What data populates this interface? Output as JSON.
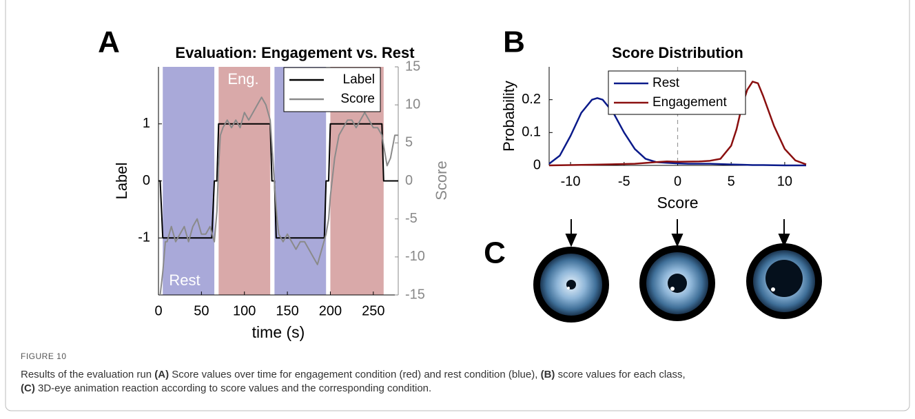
{
  "panels": [
    "A",
    "B",
    "C"
  ],
  "chart_data": [
    {
      "type": "line",
      "title": "Evaluation: Engagement vs. Rest",
      "xlabel": "time (s)",
      "ylabel": "Label",
      "y2label": "Score",
      "xlim": [
        0,
        279
      ],
      "xticks": [
        0,
        50,
        100,
        150,
        200,
        250
      ],
      "ylim": [
        -2,
        2
      ],
      "yticks": [
        -1,
        0,
        1
      ],
      "y2lim": [
        -15,
        15
      ],
      "y2ticks": [
        -15,
        -10,
        -5,
        0,
        5,
        10,
        15
      ],
      "shaded": [
        {
          "start": 5,
          "end": 65,
          "color": "#a9a9d9"
        },
        {
          "start": 70,
          "end": 130,
          "color": "#d9a9a9"
        },
        {
          "start": 135,
          "end": 195,
          "color": "#a9a9d9"
        },
        {
          "start": 200,
          "end": 262,
          "color": "#d9a9a9"
        }
      ],
      "annotations": [
        "Eng.",
        "Rest"
      ],
      "legend": "upper right",
      "series": [
        {
          "name": "Label",
          "color": "#000000",
          "x": [
            0,
            2,
            5,
            62,
            65,
            68,
            70,
            130,
            132,
            135,
            137,
            193,
            195,
            198,
            200,
            260,
            262,
            279
          ],
          "values": [
            0,
            0,
            -1,
            -1,
            0,
            0,
            1,
            1,
            0,
            0,
            -1,
            -1,
            0,
            0,
            1,
            1,
            0,
            0
          ]
        },
        {
          "name": "Score",
          "color": "#8a8a8a",
          "axis": "y2",
          "x": [
            2,
            5,
            8,
            10,
            15,
            20,
            25,
            30,
            35,
            40,
            45,
            50,
            55,
            60,
            65,
            68,
            70,
            72,
            75,
            80,
            85,
            90,
            95,
            100,
            105,
            110,
            115,
            120,
            125,
            130,
            133,
            136,
            138,
            140,
            145,
            150,
            155,
            160,
            165,
            170,
            175,
            180,
            185,
            190,
            195,
            198,
            200,
            203,
            205,
            210,
            215,
            220,
            225,
            230,
            235,
            240,
            245,
            250,
            255,
            260,
            263,
            266,
            270,
            275,
            279
          ],
          "values": [
            -15,
            -12,
            -8,
            -8,
            -6,
            -8,
            -7,
            -6,
            -8,
            -6,
            -5,
            -7,
            -7,
            -6,
            -8,
            -4,
            2,
            6,
            7,
            8,
            7,
            8,
            7,
            9,
            8,
            9,
            10,
            11,
            10,
            8,
            3,
            -2,
            -5,
            -7,
            -8,
            -7,
            -8,
            -9,
            -8,
            -8,
            -9,
            -10,
            -11,
            -9,
            -7,
            -5,
            -2,
            1,
            3,
            6,
            7,
            8,
            8,
            7,
            8,
            9,
            8,
            7,
            7,
            6,
            4,
            2,
            3,
            6,
            6
          ]
        }
      ]
    },
    {
      "type": "line",
      "title": "Score Distribution",
      "xlabel": "Score",
      "ylabel": "Probability",
      "xlim": [
        -12,
        12
      ],
      "xticks": [
        -10,
        -5,
        0,
        5,
        10
      ],
      "ylim": [
        0,
        0.3
      ],
      "yticks": [
        0,
        0.1,
        0.2
      ],
      "vline": 0,
      "legend": "upper center",
      "series": [
        {
          "name": "Rest",
          "color": "#0a1a8a",
          "x": [
            -12,
            -11,
            -10,
            -9,
            -8,
            -7.5,
            -7,
            -6,
            -5,
            -4,
            -3,
            -2,
            -1,
            0,
            1,
            2,
            3,
            4,
            5,
            6,
            7,
            8,
            10,
            12
          ],
          "values": [
            0.005,
            0.03,
            0.09,
            0.16,
            0.2,
            0.205,
            0.2,
            0.16,
            0.1,
            0.05,
            0.02,
            0.01,
            0.008,
            0.006,
            0.005,
            0.005,
            0.005,
            0.004,
            0.003,
            0.002,
            0.001,
            0.001,
            0,
            0
          ]
        },
        {
          "name": "Engagement",
          "color": "#8a0f0f",
          "x": [
            -12,
            -8,
            -4,
            -2,
            -1,
            0,
            2,
            3,
            4,
            5,
            5.5,
            6,
            6.5,
            7,
            7.5,
            8,
            9,
            10,
            11,
            12
          ],
          "values": [
            0,
            0.002,
            0.005,
            0.01,
            0.012,
            0.011,
            0.012,
            0.014,
            0.02,
            0.06,
            0.11,
            0.18,
            0.23,
            0.255,
            0.25,
            0.21,
            0.12,
            0.05,
            0.015,
            0.003
          ]
        }
      ]
    }
  ],
  "figure_label": "FIGURE 10",
  "caption": [
    "Results of the evaluation run ",
    "(A)",
    " Score values over time for engagement condition (red) and rest condition (blue), ",
    "(B)",
    " score values for each class,",
    "(C)",
    " 3D-eye animation reaction according to score values and the corresponding condition."
  ]
}
